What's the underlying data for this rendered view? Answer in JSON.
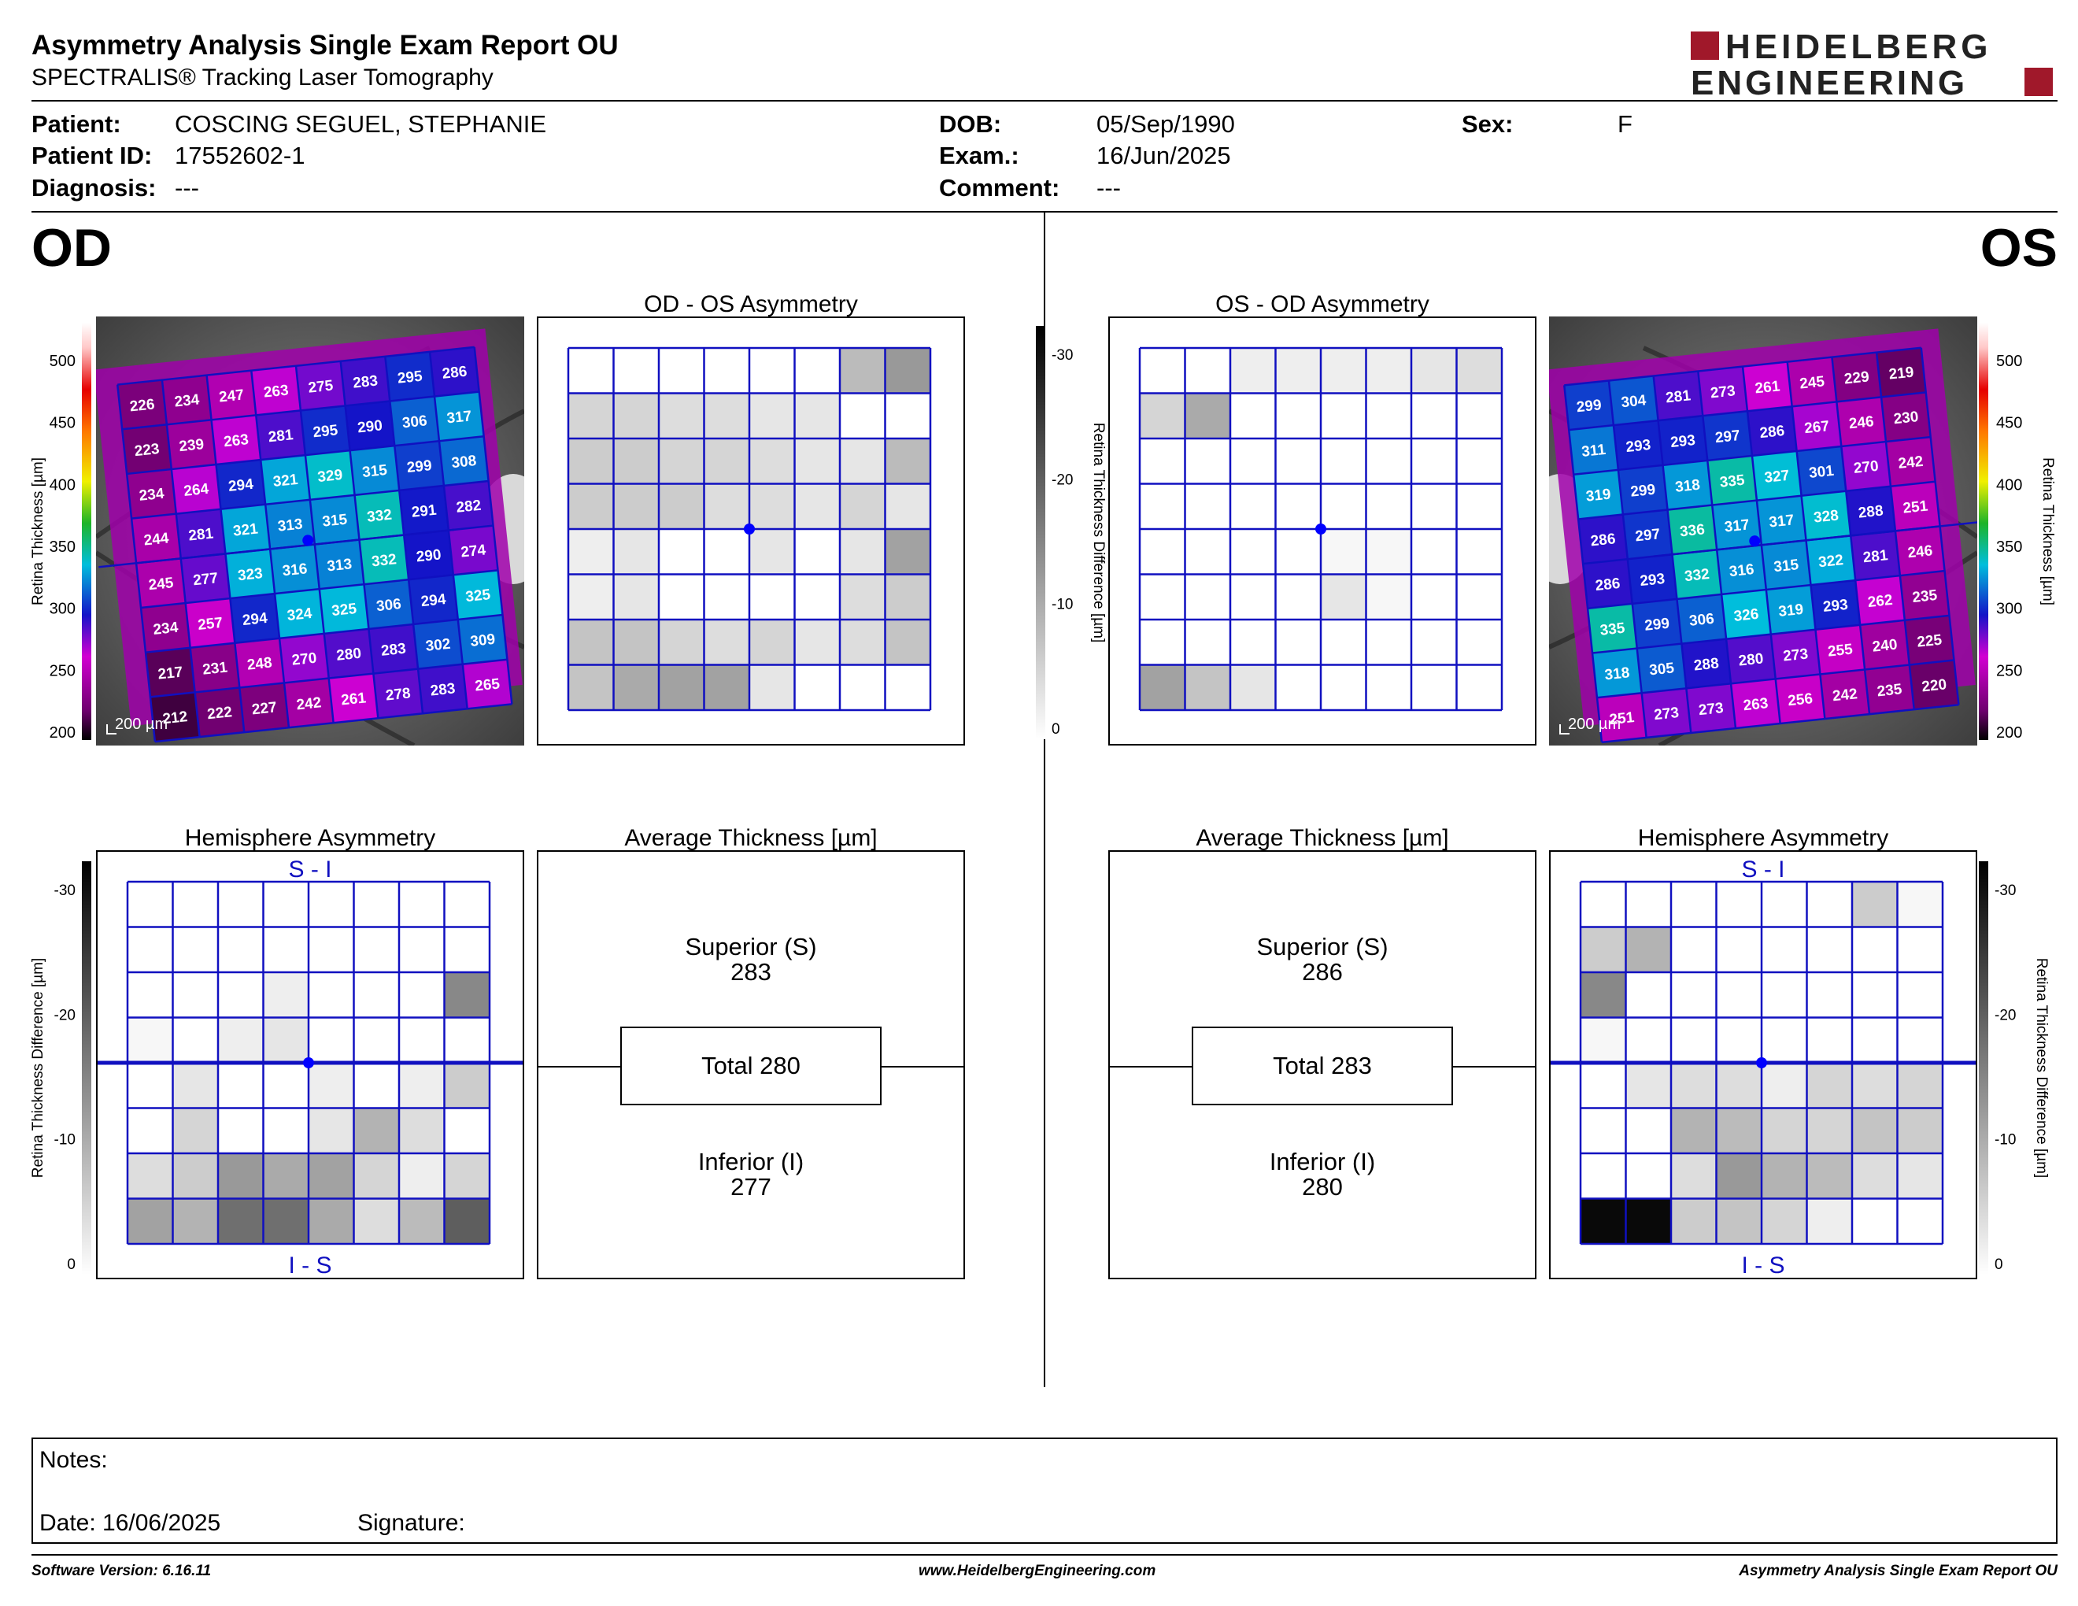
{
  "header": {
    "title": "Asymmetry Analysis Single Exam Report OU",
    "subtitle": "SPECTRALIS® Tracking Laser Tomography",
    "logo_line1": "HEIDELBERG",
    "logo_line2": "ENGINEERING"
  },
  "patient": {
    "patient_label": "Patient:",
    "patient_value": "COSCING SEGUEL, STEPHANIE",
    "id_label": "Patient ID:",
    "id_value": "17552602-1",
    "diag_label": "Diagnosis:",
    "diag_value": "---",
    "dob_label": "DOB:",
    "dob_value": "05/Sep/1990",
    "exam_label": "Exam.:",
    "exam_value": "16/Jun/2025",
    "comment_label": "Comment:",
    "comment_value": "---",
    "sex_label": "Sex:",
    "sex_value": "F"
  },
  "od": {
    "eye_label": "OD",
    "asym_title": "OD - OS Asymmetry",
    "hemi_title": "Hemisphere Asymmetry",
    "avg_title": "Average Thickness [µm]",
    "hemi_top": "S - I",
    "hemi_bottom": "I - S",
    "scale_label": "200 µm",
    "superior_label": "Superior (S)",
    "superior_value": "283",
    "total_text": "Total 280",
    "inferior_label": "Inferior (I)",
    "inferior_value": "277",
    "thickness_grid": [
      [
        226,
        234,
        247,
        263,
        275,
        283,
        295,
        286
      ],
      [
        223,
        239,
        263,
        281,
        295,
        290,
        306,
        317
      ],
      [
        234,
        264,
        294,
        321,
        329,
        315,
        299,
        308
      ],
      [
        244,
        281,
        321,
        313,
        315,
        332,
        291,
        282
      ],
      [
        245,
        277,
        323,
        316,
        313,
        332,
        290,
        274
      ],
      [
        234,
        257,
        294,
        324,
        325,
        306,
        294,
        325
      ],
      [
        217,
        231,
        248,
        270,
        280,
        283,
        302,
        309
      ],
      [
        212,
        222,
        227,
        242,
        261,
        278,
        283,
        265
      ]
    ],
    "asym_grid": [
      [
        0,
        0,
        0,
        0,
        0,
        0,
        8,
        12
      ],
      [
        5,
        5,
        4,
        4,
        3,
        3,
        0,
        0
      ],
      [
        6,
        6,
        5,
        5,
        4,
        3,
        3,
        8
      ],
      [
        6,
        6,
        6,
        4,
        4,
        3,
        5,
        3
      ],
      [
        2,
        3,
        0,
        0,
        3,
        0,
        3,
        11
      ],
      [
        2,
        3,
        0,
        0,
        0,
        0,
        4,
        6
      ],
      [
        7,
        7,
        5,
        4,
        5,
        3,
        4,
        7
      ],
      [
        7,
        10,
        11,
        11,
        3,
        0,
        0,
        0
      ]
    ],
    "hemi_grid": [
      [
        0,
        0,
        0,
        0,
        0,
        0,
        0,
        0
      ],
      [
        0,
        0,
        0,
        0,
        0,
        0,
        0,
        0
      ],
      [
        0,
        0,
        0,
        2,
        0,
        0,
        0,
        14
      ],
      [
        1,
        0,
        2,
        3,
        0,
        0,
        0,
        0
      ],
      [
        0,
        3,
        0,
        0,
        2,
        0,
        2,
        6
      ],
      [
        0,
        5,
        0,
        0,
        3,
        9,
        4,
        0
      ],
      [
        4,
        6,
        12,
        10,
        11,
        5,
        2,
        5
      ],
      [
        11,
        9,
        17,
        17,
        10,
        4,
        8,
        19
      ]
    ]
  },
  "os": {
    "eye_label": "OS",
    "asym_title": "OS - OD Asymmetry",
    "hemi_title": "Hemisphere Asymmetry",
    "avg_title": "Average Thickness [µm]",
    "hemi_top": "S - I",
    "hemi_bottom": "I - S",
    "scale_label": "200 µm",
    "superior_label": "Superior (S)",
    "superior_value": "286",
    "total_text": "Total 283",
    "inferior_label": "Inferior (I)",
    "inferior_value": "280",
    "thickness_grid": [
      [
        299,
        304,
        281,
        273,
        261,
        245,
        229,
        219
      ],
      [
        311,
        293,
        293,
        297,
        286,
        267,
        246,
        230
      ],
      [
        319,
        299,
        318,
        335,
        327,
        301,
        270,
        242
      ],
      [
        286,
        297,
        336,
        317,
        317,
        328,
        288,
        251
      ],
      [
        286,
        293,
        332,
        316,
        315,
        322,
        281,
        246
      ],
      [
        335,
        299,
        306,
        326,
        319,
        293,
        262,
        235
      ],
      [
        318,
        305,
        288,
        280,
        273,
        255,
        240,
        225
      ],
      [
        251,
        273,
        273,
        263,
        256,
        242,
        235,
        220
      ]
    ],
    "asym_grid": [
      [
        0,
        0,
        2,
        2,
        2,
        2,
        3,
        4
      ],
      [
        5,
        10,
        0,
        0,
        0,
        0,
        0,
        0
      ],
      [
        0,
        0,
        0,
        0,
        0,
        0,
        0,
        0
      ],
      [
        0,
        0,
        0,
        0,
        0,
        0,
        0,
        0
      ],
      [
        0,
        0,
        0,
        0,
        1,
        1,
        0,
        0
      ],
      [
        0,
        0,
        0,
        0,
        3,
        1,
        0,
        0
      ],
      [
        0,
        0,
        0,
        0,
        0,
        0,
        0,
        0
      ],
      [
        11,
        7,
        3,
        0,
        0,
        0,
        0,
        0
      ]
    ],
    "hemi_grid": [
      [
        0,
        0,
        0,
        0,
        0,
        0,
        6,
        1
      ],
      [
        6,
        9,
        0,
        0,
        0,
        0,
        0,
        0
      ],
      [
        14,
        0,
        0,
        0,
        0,
        0,
        0,
        0
      ],
      [
        1,
        0,
        0,
        0,
        0,
        0,
        0,
        0
      ],
      [
        0,
        3,
        4,
        4,
        2,
        5,
        4,
        5
      ],
      [
        0,
        0,
        9,
        8,
        5,
        5,
        7,
        6
      ],
      [
        0,
        0,
        4,
        12,
        9,
        8,
        4,
        3
      ],
      [
        29,
        29,
        6,
        7,
        5,
        2,
        0,
        0
      ]
    ]
  },
  "colorbars": {
    "thickness_ticks": [
      "500",
      "450",
      "400",
      "350",
      "300",
      "250",
      "200"
    ],
    "thickness_axis_label": "Retina Thickness [µm]",
    "diff_ticks_center": [
      "-30",
      "-20",
      "-10",
      "0"
    ],
    "diff_ticks_side": [
      "-30",
      "-20",
      "-10",
      "0"
    ],
    "diff_axis_label": "Retina Thickness Difference [µm]"
  },
  "notes": {
    "notes_label": "Notes:",
    "date_label": "Date: 16/06/2025",
    "signature_label": "Signature:"
  },
  "footer": {
    "software": "Software Version: 6.16.11",
    "website": "www.HeidelbergEngineering.com",
    "report": "Asymmetry Analysis Single Exam Report OU"
  },
  "colors": {
    "grid_blue": "#1010c0",
    "logo_red": "#a0182a"
  }
}
